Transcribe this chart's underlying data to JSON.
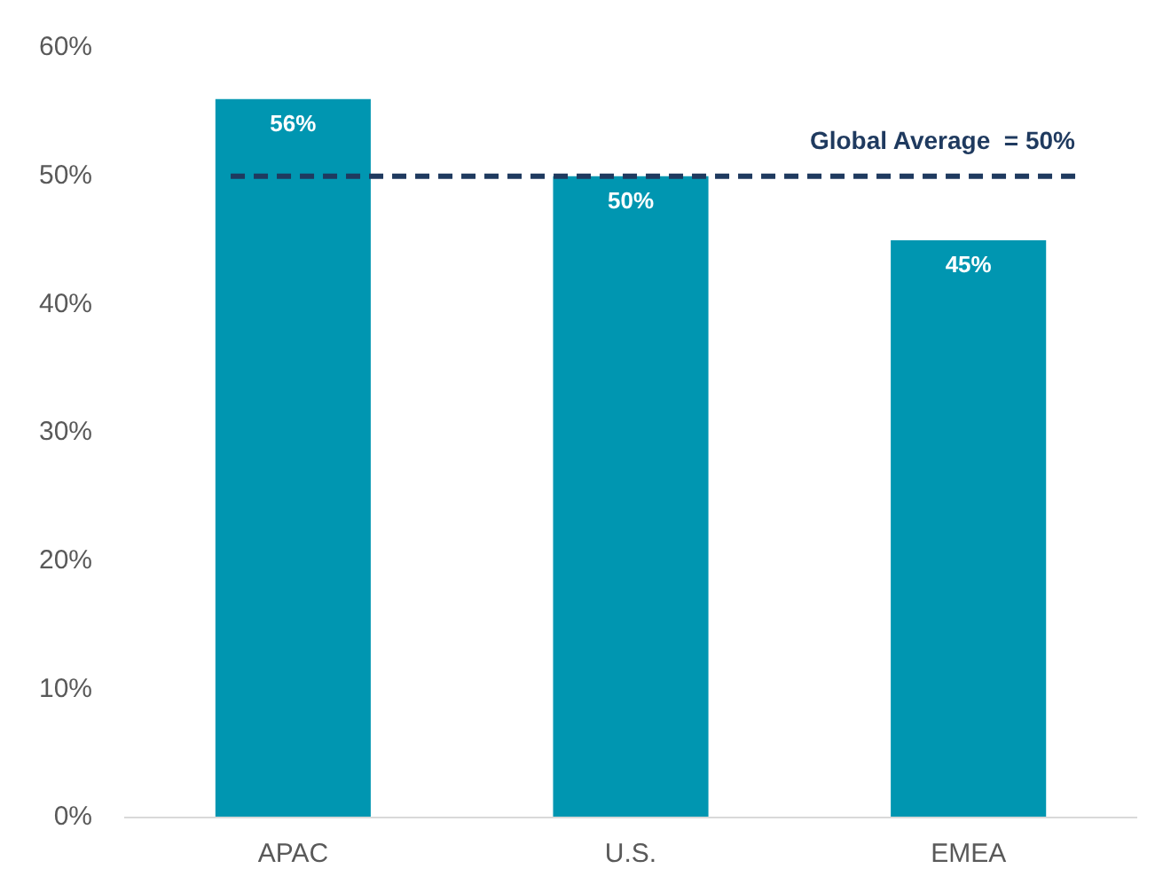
{
  "chart_data": {
    "type": "bar",
    "categories": [
      "APAC",
      "U.S.",
      "EMEA"
    ],
    "values": [
      56,
      50,
      45
    ],
    "value_labels": [
      "56%",
      "50%",
      "45%"
    ],
    "color": "#0096b1",
    "ylim": [
      0,
      60
    ],
    "yticks": [
      {
        "value": 0,
        "label": "0%"
      },
      {
        "value": 10,
        "label": "10%"
      },
      {
        "value": 20,
        "label": "20%"
      },
      {
        "value": 30,
        "label": "30%"
      },
      {
        "value": 40,
        "label": "40%"
      },
      {
        "value": 50,
        "label": "50%"
      },
      {
        "value": 60,
        "label": "60%"
      }
    ],
    "grid": false,
    "legend": false,
    "ref_lines": [
      {
        "axis": "y",
        "value": 50,
        "label": "Global Average  = 50%",
        "color": "#1f3a5f",
        "line_style": "dashed"
      }
    ]
  }
}
